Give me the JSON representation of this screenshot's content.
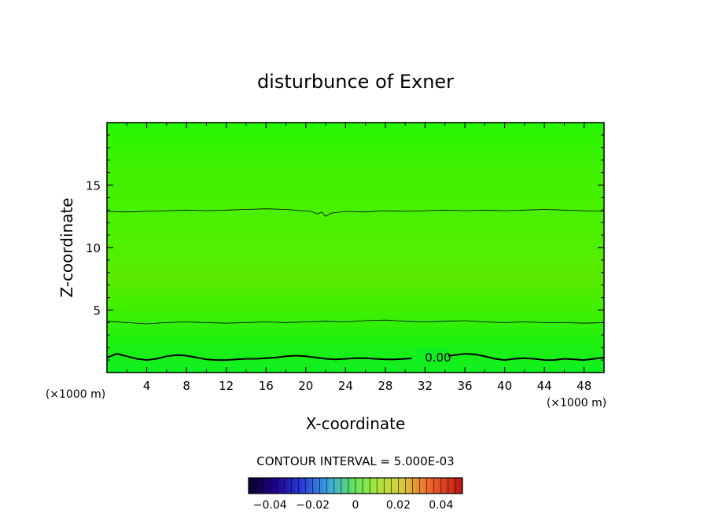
{
  "chart_data": {
    "type": "contour",
    "title": "disturbunce of Exner",
    "xlabel": "X-coordinate",
    "ylabel": "Z-coordinate",
    "x_unit": "(×1000 m)",
    "x_unit_right": "(×1000 m)",
    "xlim": [
      0,
      50
    ],
    "ylim": [
      0,
      20
    ],
    "x_ticks": [
      "4",
      "8",
      "12",
      "16",
      "20",
      "24",
      "28",
      "32",
      "36",
      "40",
      "44",
      "48"
    ],
    "y_ticks": [
      "5",
      "10",
      "15"
    ],
    "contour_interval_label": "CONTOUR INTERVAL = 5.000E-03",
    "contour_label": "0.00",
    "contours": [
      {
        "level": 0.0,
        "bold": true,
        "points": [
          [
            0,
            1.2
          ],
          [
            1,
            1.5
          ],
          [
            2,
            1.3
          ],
          [
            3,
            1.1
          ],
          [
            4,
            1.0
          ],
          [
            5,
            1.1
          ],
          [
            6,
            1.3
          ],
          [
            7,
            1.4
          ],
          [
            8,
            1.35
          ],
          [
            9,
            1.2
          ],
          [
            10,
            1.05
          ],
          [
            11,
            1.0
          ],
          [
            12,
            1.0
          ],
          [
            13,
            1.05
          ],
          [
            14,
            1.1
          ],
          [
            15,
            1.1
          ],
          [
            16,
            1.15
          ],
          [
            17,
            1.2
          ],
          [
            18,
            1.3
          ],
          [
            19,
            1.35
          ],
          [
            20,
            1.3
          ],
          [
            21,
            1.2
          ],
          [
            22,
            1.1
          ],
          [
            23,
            1.05
          ],
          [
            24,
            1.1
          ],
          [
            25,
            1.15
          ],
          [
            26,
            1.15
          ],
          [
            27,
            1.1
          ],
          [
            28,
            1.05
          ],
          [
            29,
            1.05
          ],
          [
            30,
            1.1
          ],
          [
            31,
            1.15
          ],
          [
            32,
            1.2
          ],
          [
            33,
            1.25
          ],
          [
            34,
            1.3
          ],
          [
            35,
            1.4
          ],
          [
            36,
            1.5
          ],
          [
            37,
            1.45
          ],
          [
            38,
            1.3
          ],
          [
            39,
            1.1
          ],
          [
            40,
            1.0
          ],
          [
            41,
            1.1
          ],
          [
            42,
            1.15
          ],
          [
            43,
            1.1
          ],
          [
            44,
            1.0
          ],
          [
            45,
            1.0
          ],
          [
            46,
            1.1
          ],
          [
            47,
            1.05
          ],
          [
            48,
            1.0
          ],
          [
            49,
            1.1
          ],
          [
            50,
            1.2
          ]
        ]
      },
      {
        "level": -0.005,
        "bold": false,
        "points": [
          [
            0,
            4.1
          ],
          [
            2,
            4.0
          ],
          [
            4,
            3.9
          ],
          [
            6,
            4.0
          ],
          [
            8,
            4.05
          ],
          [
            10,
            4.0
          ],
          [
            12,
            3.95
          ],
          [
            14,
            4.0
          ],
          [
            16,
            4.05
          ],
          [
            18,
            4.0
          ],
          [
            20,
            4.05
          ],
          [
            22,
            4.1
          ],
          [
            24,
            4.05
          ],
          [
            26,
            4.15
          ],
          [
            28,
            4.2
          ],
          [
            30,
            4.1
          ],
          [
            32,
            4.05
          ],
          [
            34,
            4.1
          ],
          [
            36,
            4.15
          ],
          [
            38,
            4.05
          ],
          [
            40,
            4.0
          ],
          [
            42,
            4.05
          ],
          [
            44,
            4.0
          ],
          [
            46,
            4.0
          ],
          [
            48,
            3.95
          ],
          [
            50,
            4.0
          ]
        ]
      },
      {
        "level": -0.005,
        "bold": false,
        "points": [
          [
            0,
            12.9
          ],
          [
            2,
            12.85
          ],
          [
            4,
            12.9
          ],
          [
            6,
            12.95
          ],
          [
            8,
            13.0
          ],
          [
            10,
            12.95
          ],
          [
            12,
            13.0
          ],
          [
            14,
            13.05
          ],
          [
            16,
            13.1
          ],
          [
            18,
            13.05
          ],
          [
            19.5,
            12.95
          ],
          [
            20.5,
            12.9
          ],
          [
            21.2,
            12.7
          ],
          [
            21.6,
            12.85
          ],
          [
            22,
            12.5
          ],
          [
            22.5,
            12.75
          ],
          [
            23,
            12.8
          ],
          [
            24,
            12.9
          ],
          [
            26,
            12.85
          ],
          [
            28,
            12.95
          ],
          [
            30,
            12.9
          ],
          [
            32,
            12.95
          ],
          [
            34,
            13.0
          ],
          [
            36,
            12.95
          ],
          [
            38,
            13.0
          ],
          [
            40,
            12.95
          ],
          [
            42,
            13.0
          ],
          [
            44,
            13.05
          ],
          [
            46,
            13.0
          ],
          [
            48,
            12.95
          ],
          [
            50,
            12.9
          ]
        ]
      }
    ],
    "colorbar": {
      "ticks": [
        "−0.04",
        "−0.02",
        "0",
        "0.02",
        "0.04"
      ],
      "tick_values": [
        -0.04,
        -0.02,
        0,
        0.02,
        0.04
      ],
      "range": [
        -0.05,
        0.05
      ]
    }
  }
}
